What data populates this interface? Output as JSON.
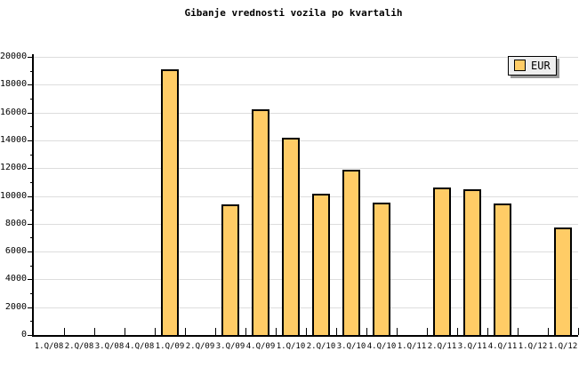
{
  "title": "Gibanje vrednosti vozila po kvartalih",
  "legend": {
    "label": "EUR"
  },
  "colors": {
    "background": "#FFFFFF",
    "bar_fill": "#FFCC66",
    "bar_border": "#000000",
    "gridline": "#DDDDDD",
    "axis": "#000000",
    "legend_bg": "#EEEEEE",
    "legend_shadow": "#999999",
    "text": "#000000"
  },
  "chart_data": {
    "type": "bar",
    "title": "Gibanje vrednosti vozila po kvartalih",
    "categories": [
      "1.Q/08",
      "2.Q/08",
      "3.Q/08",
      "4.Q/08",
      "1.Q/09",
      "2.Q/09",
      "3.Q/09",
      "4.Q/09",
      "1.Q/10",
      "2.Q/10",
      "3.Q/10",
      "4.Q/10",
      "1.Q/11",
      "2.Q/11",
      "3.Q/11",
      "4.Q/11",
      "1.Q/12",
      "1.Q/12"
    ],
    "series": [
      {
        "name": "EUR",
        "values": [
          null,
          null,
          null,
          null,
          19100,
          null,
          9400,
          16250,
          14200,
          10150,
          11900,
          9550,
          null,
          10600,
          10450,
          9450,
          null,
          7750
        ]
      }
    ],
    "xlabel": "",
    "ylabel": "",
    "ylim": [
      0,
      20000
    ],
    "ytick_step": 2000,
    "ytick_labels": [
      "0",
      "2000",
      "4000",
      "6000",
      "8000",
      "10000",
      "12000",
      "14000",
      "16000",
      "18000",
      "20000"
    ],
    "grid": "horizontal-major",
    "legend_position": "top-right",
    "legend_entries": [
      "EUR"
    ]
  }
}
